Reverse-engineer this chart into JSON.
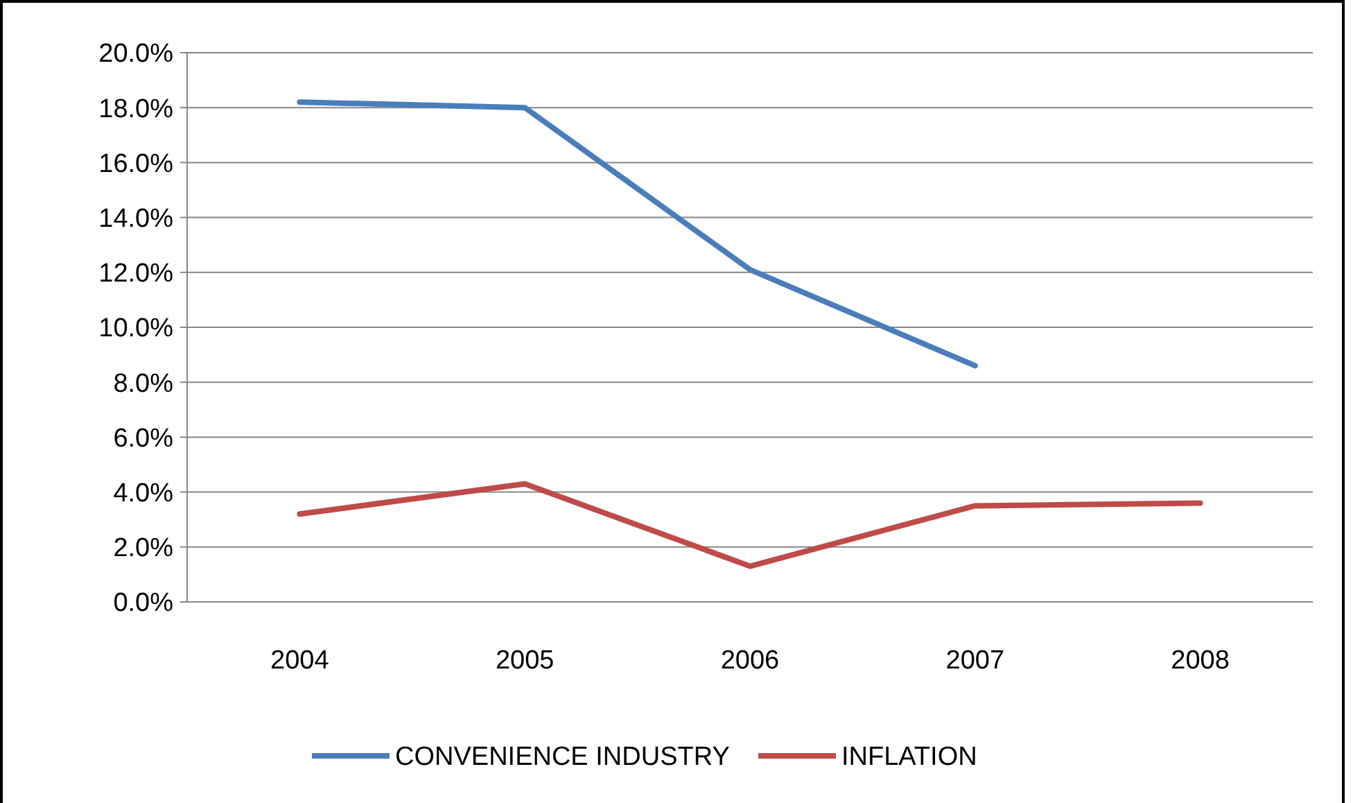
{
  "chart_data": {
    "type": "line",
    "categories": [
      "2004",
      "2005",
      "2006",
      "2007",
      "2008"
    ],
    "series": [
      {
        "name": "CONVENIENCE INDUSTRY",
        "color": "#4a7ebb",
        "values": [
          18.2,
          18.0,
          12.1,
          8.6,
          null
        ]
      },
      {
        "name": "INFLATION",
        "color": "#be4b48",
        "values": [
          3.2,
          4.3,
          1.3,
          3.5,
          3.6
        ]
      }
    ],
    "ylim": [
      0,
      20
    ],
    "yticks": [
      {
        "value": 0,
        "label": "0.0%"
      },
      {
        "value": 2,
        "label": "2.0%"
      },
      {
        "value": 4,
        "label": "4.0%"
      },
      {
        "value": 6,
        "label": "6.0%"
      },
      {
        "value": 8,
        "label": "8.0%"
      },
      {
        "value": 10,
        "label": "10.0%"
      },
      {
        "value": 12,
        "label": "12.0%"
      },
      {
        "value": 14,
        "label": "14.0%"
      },
      {
        "value": 16,
        "label": "16.0%"
      },
      {
        "value": 18,
        "label": "18.0%"
      },
      {
        "value": 20,
        "label": "20.0%"
      }
    ],
    "grid": "y",
    "legend": "bottom",
    "marker": "none",
    "line_style": "solid"
  }
}
